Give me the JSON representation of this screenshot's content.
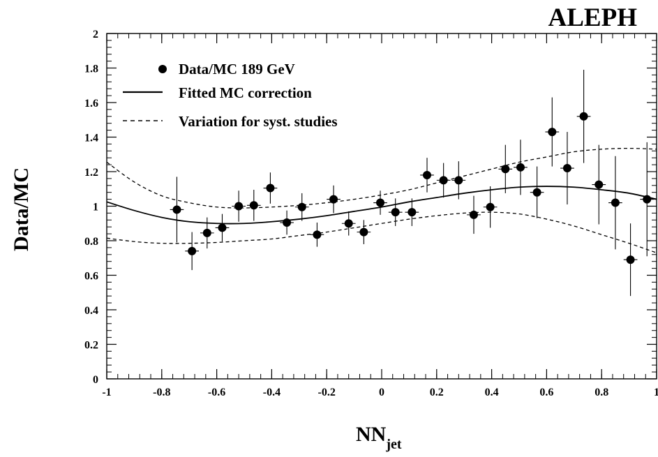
{
  "chart_data": {
    "type": "scatter",
    "experiment_label": "ALEPH",
    "xlabel": "NN",
    "xlabel_subscript": "jet",
    "ylabel": "Data/MC",
    "xlim": [
      -1,
      1
    ],
    "ylim": [
      0,
      2
    ],
    "x_ticks": [
      "-1",
      "-0.8",
      "-0.6",
      "-0.4",
      "-0.2",
      "0",
      "0.2",
      "0.4",
      "0.6",
      "0.8",
      "1"
    ],
    "y_ticks": [
      "0",
      "0.2",
      "0.4",
      "0.6",
      "0.8",
      "1",
      "1.2",
      "1.4",
      "1.6",
      "1.8",
      "2"
    ],
    "legend_position": "top-left",
    "legend": {
      "data": "Data/MC 189 GeV",
      "fit": "Fitted MC correction",
      "variation": "Variation for syst. studies"
    },
    "series": [
      {
        "name": "Data/MC 189 GeV",
        "x_err": 0.025,
        "points": [
          {
            "x": -0.745,
            "y": 0.98,
            "err": 0.19
          },
          {
            "x": -0.69,
            "y": 0.74,
            "err": 0.11
          },
          {
            "x": -0.635,
            "y": 0.845,
            "err": 0.09
          },
          {
            "x": -0.58,
            "y": 0.875,
            "err": 0.08
          },
          {
            "x": -0.52,
            "y": 1.0,
            "err": 0.09
          },
          {
            "x": -0.465,
            "y": 1.005,
            "err": 0.09
          },
          {
            "x": -0.405,
            "y": 1.105,
            "err": 0.09
          },
          {
            "x": -0.345,
            "y": 0.905,
            "err": 0.07
          },
          {
            "x": -0.29,
            "y": 0.995,
            "err": 0.08
          },
          {
            "x": -0.235,
            "y": 0.835,
            "err": 0.07
          },
          {
            "x": -0.175,
            "y": 1.04,
            "err": 0.08
          },
          {
            "x": -0.12,
            "y": 0.9,
            "err": 0.07
          },
          {
            "x": -0.065,
            "y": 0.85,
            "err": 0.07
          },
          {
            "x": -0.005,
            "y": 1.02,
            "err": 0.07
          },
          {
            "x": 0.05,
            "y": 0.965,
            "err": 0.08
          },
          {
            "x": 0.11,
            "y": 0.965,
            "err": 0.08
          },
          {
            "x": 0.165,
            "y": 1.18,
            "err": 0.1
          },
          {
            "x": 0.225,
            "y": 1.15,
            "err": 0.1
          },
          {
            "x": 0.28,
            "y": 1.15,
            "err": 0.11
          },
          {
            "x": 0.335,
            "y": 0.95,
            "err": 0.11
          },
          {
            "x": 0.395,
            "y": 0.995,
            "err": 0.12
          },
          {
            "x": 0.45,
            "y": 1.215,
            "err": 0.14
          },
          {
            "x": 0.505,
            "y": 1.225,
            "err": 0.16
          },
          {
            "x": 0.565,
            "y": 1.08,
            "err": 0.15
          },
          {
            "x": 0.62,
            "y": 1.43,
            "err": 0.2
          },
          {
            "x": 0.675,
            "y": 1.22,
            "err": 0.21
          },
          {
            "x": 0.735,
            "y": 1.52,
            "err": 0.27
          },
          {
            "x": 0.79,
            "y": 1.125,
            "err": 0.23
          },
          {
            "x": 0.85,
            "y": 1.02,
            "err": 0.27
          },
          {
            "x": 0.905,
            "y": 0.69,
            "err": 0.21
          },
          {
            "x": 0.965,
            "y": 1.04,
            "err": 0.33
          }
        ]
      },
      {
        "name": "Fitted MC correction",
        "style": "solid",
        "x": [
          -1.0,
          -0.9,
          -0.8,
          -0.7,
          -0.6,
          -0.5,
          -0.4,
          -0.3,
          -0.2,
          -0.1,
          0.0,
          0.1,
          0.2,
          0.3,
          0.4,
          0.5,
          0.6,
          0.7,
          0.8,
          0.9,
          1.0
        ],
        "y": [
          1.025,
          0.975,
          0.935,
          0.91,
          0.9,
          0.9,
          0.91,
          0.925,
          0.945,
          0.97,
          0.995,
          1.025,
          1.05,
          1.075,
          1.095,
          1.11,
          1.115,
          1.11,
          1.095,
          1.075,
          1.04
        ]
      },
      {
        "name": "Variation for syst. studies",
        "style": "dashed",
        "x": [
          -1.0,
          -0.9,
          -0.8,
          -0.7,
          -0.6,
          -0.5,
          -0.4,
          -0.3,
          -0.2,
          -0.1,
          0.0,
          0.1,
          0.2,
          0.3,
          0.4,
          0.5,
          0.6,
          0.7,
          0.8,
          0.9,
          1.0
        ],
        "y": [
          1.255,
          1.14,
          1.06,
          1.02,
          0.995,
          0.99,
          0.995,
          1.005,
          1.02,
          1.04,
          1.065,
          1.095,
          1.135,
          1.175,
          1.215,
          1.255,
          1.285,
          1.315,
          1.33,
          1.335,
          1.33
        ]
      },
      {
        "name": "Variation for syst. studies (lower)",
        "style": "dashed",
        "x": [
          -1.0,
          -0.9,
          -0.8,
          -0.7,
          -0.6,
          -0.5,
          -0.4,
          -0.3,
          -0.2,
          -0.1,
          0.0,
          0.1,
          0.2,
          0.3,
          0.4,
          0.5,
          0.6,
          0.7,
          0.8,
          0.9,
          1.0
        ],
        "y": [
          0.815,
          0.795,
          0.785,
          0.785,
          0.79,
          0.8,
          0.81,
          0.83,
          0.85,
          0.875,
          0.9,
          0.925,
          0.945,
          0.96,
          0.965,
          0.955,
          0.925,
          0.885,
          0.835,
          0.785,
          0.73
        ]
      }
    ]
  }
}
